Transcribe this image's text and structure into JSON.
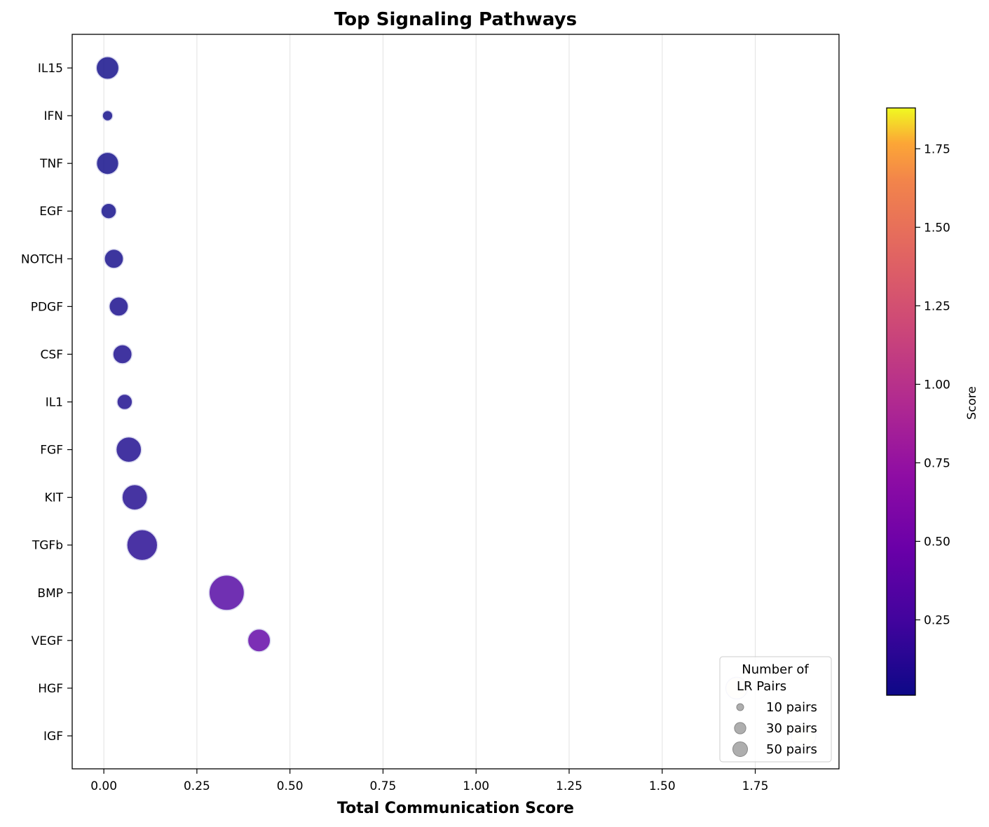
{
  "chart_data": {
    "type": "scatter",
    "title": "Top Signaling Pathways",
    "xlabel": "Total Communication Score",
    "ylabel": "",
    "xlim": [
      -0.085,
      1.975
    ],
    "x_ticks": [
      "0.00",
      "0.25",
      "0.50",
      "0.75",
      "1.00",
      "1.25",
      "1.50",
      "1.75"
    ],
    "x_tick_values": [
      0,
      0.25,
      0.5,
      0.75,
      1.0,
      1.25,
      1.5,
      1.75
    ],
    "grid": "x-only",
    "categories": [
      "IL15",
      "IFN",
      "TNF",
      "EGF",
      "NOTCH",
      "PDGF",
      "CSF",
      "IL1",
      "FGF",
      "KIT",
      "TGFb",
      "BMP",
      "VEGF",
      "HGF",
      "IGF"
    ],
    "points": [
      {
        "pathway": "IL15",
        "score": 0.01,
        "lr_pairs": 24
      },
      {
        "pathway": "IFN",
        "score": 0.01,
        "lr_pairs": 5
      },
      {
        "pathway": "TNF",
        "score": 0.01,
        "lr_pairs": 23
      },
      {
        "pathway": "EGF",
        "score": 0.013,
        "lr_pairs": 11
      },
      {
        "pathway": "NOTCH",
        "score": 0.027,
        "lr_pairs": 17
      },
      {
        "pathway": "PDGF",
        "score": 0.04,
        "lr_pairs": 17
      },
      {
        "pathway": "CSF",
        "score": 0.05,
        "lr_pairs": 17
      },
      {
        "pathway": "IL1",
        "score": 0.056,
        "lr_pairs": 11
      },
      {
        "pathway": "FGF",
        "score": 0.067,
        "lr_pairs": 30
      },
      {
        "pathway": "KIT",
        "score": 0.083,
        "lr_pairs": 30
      },
      {
        "pathway": "TGFb",
        "score": 0.103,
        "lr_pairs": 44
      },
      {
        "pathway": "BMP",
        "score": 0.33,
        "lr_pairs": 58
      },
      {
        "pathway": "VEGF",
        "score": 0.417,
        "lr_pairs": 24
      },
      {
        "pathway": "HGF",
        "score": 1.7,
        "lr_pairs": 22
      },
      {
        "pathway": "IGF",
        "score": 1.88,
        "lr_pairs": 28
      }
    ],
    "colorbar": {
      "label": "Score",
      "colormap": "plasma",
      "range": [
        0.01,
        1.88
      ],
      "ticks": [
        "0.25",
        "0.50",
        "0.75",
        "1.00",
        "1.25",
        "1.50",
        "1.75"
      ],
      "tick_values": [
        0.25,
        0.5,
        0.75,
        1.0,
        1.25,
        1.5,
        1.75
      ]
    },
    "legend": {
      "title_line1": "Number of",
      "title_line2": "LR Pairs",
      "placement": "lower-right",
      "entries": [
        {
          "label": "10 pairs",
          "pairs": 10
        },
        {
          "label": "30 pairs",
          "pairs": 30
        },
        {
          "label": "50 pairs",
          "pairs": 50
        }
      ]
    },
    "colors": {
      "marker_edge": "#d8d8ee",
      "grid": "#e6e6e6",
      "legend_marker": "#a0a0a0"
    }
  }
}
